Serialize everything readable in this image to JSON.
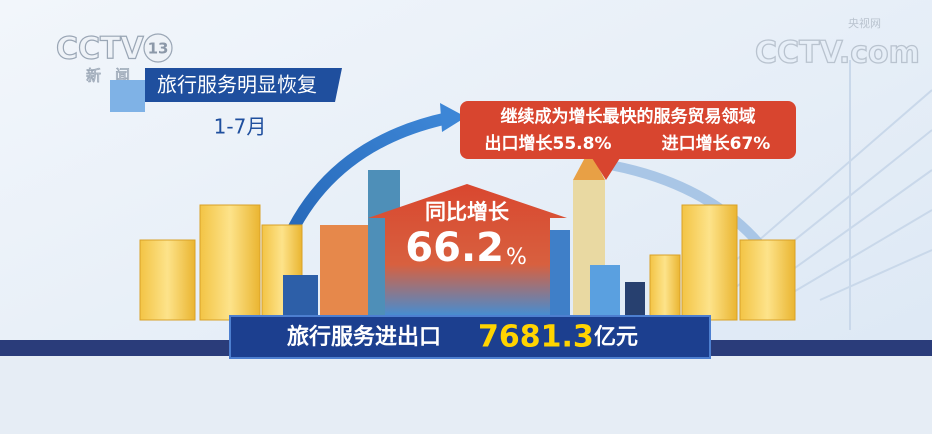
{
  "logo": {
    "channel": "CCTV",
    "number": "13",
    "name": "新闻"
  },
  "watermark": {
    "site": "CCTV.com",
    "name": "央视网"
  },
  "header": {
    "title": "旅行服务明显恢复",
    "period": "1-7月"
  },
  "callout": {
    "headline": "继续成为增长最快的服务贸易领域",
    "export": "出口增长55.8%",
    "import": "进口增长67%"
  },
  "highlight": {
    "label": "同比增长",
    "value": "66.2",
    "unit": "%"
  },
  "total": {
    "label": "旅行服务进出口",
    "value": "7681.3",
    "unit": "亿元"
  }
}
